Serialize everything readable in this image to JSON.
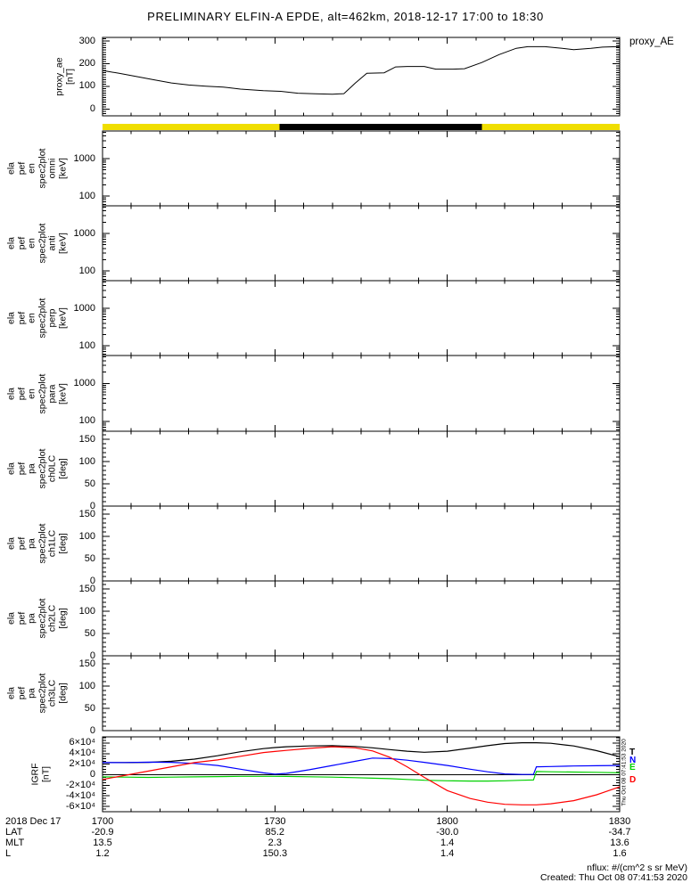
{
  "title": "PRELIMINARY ELFIN-A EPDE, alt=462km, 2018-12-17 17:00 to 18:30",
  "colors": {
    "background": "#FFFFFF",
    "axis": "#000000",
    "day_yellow": "#F0DE00",
    "night_black": "#000000",
    "line_black": "#000000",
    "line_blue": "#0000FF",
    "line_green": "#00D000",
    "line_red": "#FF0000"
  },
  "panels": [
    {
      "key": "proxy_ae",
      "ylabel": "proxy_ae\n[nT]",
      "right_label": "proxy_AE",
      "scale": "linear",
      "yrange": [
        -30,
        316
      ],
      "yticks": [
        {
          "value": 0,
          "label": "0"
        },
        {
          "value": 100,
          "label": "100"
        },
        {
          "value": 200,
          "label": "200"
        },
        {
          "value": 300,
          "label": "300"
        }
      ]
    },
    {
      "key": "omni",
      "ylabel": "ela\npef\nen\nspec2plot\nomni\n[keV]",
      "scale": "log",
      "yrange": [
        55,
        5470
      ],
      "yticks": [
        {
          "value": 100,
          "label": "100"
        },
        {
          "value": 1000,
          "label": "1000"
        }
      ]
    },
    {
      "key": "anti",
      "ylabel": "ela\npef\nen\nspec2plot\nanti\n[keV]",
      "scale": "log",
      "yrange": [
        55,
        5470
      ],
      "yticks": [
        {
          "value": 100,
          "label": "100"
        },
        {
          "value": 1000,
          "label": "1000"
        }
      ]
    },
    {
      "key": "perp",
      "ylabel": "ela\npef\nen\nspec2plot\nperp\n[keV]",
      "scale": "log",
      "yrange": [
        55,
        5470
      ],
      "yticks": [
        {
          "value": 100,
          "label": "100"
        },
        {
          "value": 1000,
          "label": "1000"
        }
      ]
    },
    {
      "key": "para",
      "ylabel": "ela\npef\nen\nspec2plot\npara\n[keV]",
      "scale": "log",
      "yrange": [
        55,
        5470
      ],
      "yticks": [
        {
          "value": 100,
          "label": "100"
        },
        {
          "value": 1000,
          "label": "1000"
        }
      ]
    },
    {
      "key": "ch0lc",
      "ylabel": "ela\npef\npa\nspec2plot\nch0LC\n[deg]",
      "scale": "linear",
      "yrange": [
        0,
        168
      ],
      "yticks": [
        {
          "value": 0,
          "label": "0"
        },
        {
          "value": 50,
          "label": "50"
        },
        {
          "value": 100,
          "label": "100"
        },
        {
          "value": 150,
          "label": "150"
        }
      ]
    },
    {
      "key": "ch1lc",
      "ylabel": "ela\npef\npa\nspec2plot\nch1LC\n[deg]",
      "scale": "linear",
      "yrange": [
        0,
        168
      ],
      "yticks": [
        {
          "value": 0,
          "label": "0"
        },
        {
          "value": 50,
          "label": "50"
        },
        {
          "value": 100,
          "label": "100"
        },
        {
          "value": 150,
          "label": "150"
        }
      ]
    },
    {
      "key": "ch2lc",
      "ylabel": "ela\npef\npa\nspec2plot\nch2LC\n[deg]",
      "scale": "linear",
      "yrange": [
        0,
        168
      ],
      "yticks": [
        {
          "value": 0,
          "label": "0"
        },
        {
          "value": 50,
          "label": "50"
        },
        {
          "value": 100,
          "label": "100"
        },
        {
          "value": 150,
          "label": "150"
        }
      ]
    },
    {
      "key": "ch3lc",
      "ylabel": "ela\npef\npa\nspec2plot\nch3LC\n[deg]",
      "scale": "linear",
      "yrange": [
        0,
        168
      ],
      "yticks": [
        {
          "value": 0,
          "label": "0"
        },
        {
          "value": 50,
          "label": "50"
        },
        {
          "value": 100,
          "label": "100"
        },
        {
          "value": 150,
          "label": "150"
        }
      ]
    },
    {
      "key": "igrf",
      "ylabel": "IGRF\n[nT]",
      "scale": "linear",
      "yrange": [
        -70000,
        71700
      ],
      "yticks": [
        {
          "value": -60000,
          "label": "-6×10⁴"
        },
        {
          "value": -40000,
          "label": "-4×10⁴"
        },
        {
          "value": -20000,
          "label": "-2×10⁴"
        },
        {
          "value": 0,
          "label": "0"
        },
        {
          "value": 20000,
          "label": "2×10⁴"
        },
        {
          "value": 40000,
          "label": "4×10⁴"
        },
        {
          "value": 60000,
          "label": "6×10⁴"
        }
      ],
      "legend": [
        {
          "label": "T",
          "color": "#000000"
        },
        {
          "label": "N",
          "color": "#0000FF"
        },
        {
          "label": "E",
          "color": "#00D000"
        },
        {
          "label": "D",
          "color": "#FF0000"
        }
      ]
    }
  ],
  "daynight_bar": {
    "segments": [
      {
        "kind": "day",
        "color": "#F0DE00",
        "from": 0.0,
        "to": 0.342
      },
      {
        "kind": "night",
        "color": "#000000",
        "from": 0.342,
        "to": 0.734
      },
      {
        "kind": "day",
        "color": "#F0DE00",
        "from": 0.734,
        "to": 1.0
      }
    ]
  },
  "xaxis": {
    "date": "2018 Dec 17",
    "row_labels": [
      "LAT",
      "MLT",
      "L"
    ],
    "ticks": [
      {
        "minutes": 0,
        "time": "1700",
        "lat": "-20.9",
        "mlt": "13.5",
        "l": "1.2"
      },
      {
        "minutes": 30,
        "time": "1730",
        "lat": "85.2",
        "mlt": "2.3",
        "l": "150.3"
      },
      {
        "minutes": 60,
        "time": "1800",
        "lat": "-30.0",
        "mlt": "1.4",
        "l": "1.4"
      },
      {
        "minutes": 90,
        "time": "1830",
        "lat": "-34.7",
        "mlt": "13.6",
        "l": "1.6"
      }
    ]
  },
  "footer": {
    "nflux": "nflux: #/(cm^2 s sr MeV)",
    "created": "Created: Thu Oct 08 07:41:53 2020"
  },
  "side_timestamp": "Thu Oct 08 07:41:53 2020",
  "chart_data": [
    {
      "panel": "proxy_ae",
      "type": "line",
      "title": "proxy_AE",
      "ylabel": "proxy_ae [nT]",
      "ylim": [
        -30,
        316
      ],
      "yticks_values": [
        0,
        100,
        200,
        300
      ],
      "xticks": [
        "1700",
        "1730",
        "1800",
        "1830"
      ],
      "color": "#000000",
      "x_minutes_after_1700": [
        0,
        3,
        6,
        9,
        12,
        15,
        18,
        21,
        24,
        28,
        31,
        34,
        37,
        40,
        42,
        44,
        46,
        49,
        51,
        53,
        56,
        58,
        61,
        63,
        66,
        69,
        72,
        74,
        77,
        80,
        82,
        85,
        87,
        90
      ],
      "values": [
        170,
        157,
        143,
        129,
        115,
        106,
        101,
        97,
        88,
        81,
        78,
        70,
        67,
        65,
        68,
        115,
        158,
        160,
        186,
        188,
        188,
        176,
        176,
        178,
        205,
        240,
        268,
        275,
        275,
        268,
        262,
        268,
        273,
        276
      ]
    },
    {
      "panel": "omni",
      "type": "heatmap",
      "title": "ela pef en spec2plot omni [keV]",
      "ylog": true,
      "ylim": [
        55,
        5470
      ],
      "empty": true,
      "note": "no data plotted"
    },
    {
      "panel": "anti",
      "type": "heatmap",
      "title": "ela pef en spec2plot anti [keV]",
      "ylog": true,
      "ylim": [
        55,
        5470
      ],
      "empty": true,
      "note": "no data plotted"
    },
    {
      "panel": "perp",
      "type": "heatmap",
      "title": "ela pef en spec2plot perp [keV]",
      "ylog": true,
      "ylim": [
        55,
        5470
      ],
      "empty": true,
      "note": "no data plotted"
    },
    {
      "panel": "para",
      "type": "heatmap",
      "title": "ela pef en spec2plot para [keV]",
      "ylog": true,
      "ylim": [
        55,
        5470
      ],
      "empty": true,
      "note": "no data plotted"
    },
    {
      "panel": "ch0lc",
      "type": "heatmap",
      "title": "ela pef pa spec2plot ch0LC [deg]",
      "ylim": [
        0,
        168
      ],
      "empty": true,
      "note": "no data plotted"
    },
    {
      "panel": "ch1lc",
      "type": "heatmap",
      "title": "ela pef pa spec2plot ch1LC [deg]",
      "ylim": [
        0,
        168
      ],
      "empty": true,
      "note": "no data plotted"
    },
    {
      "panel": "ch2lc",
      "type": "heatmap",
      "title": "ela pef pa spec2plot ch2LC [deg]",
      "ylim": [
        0,
        168
      ],
      "empty": true,
      "note": "no data plotted"
    },
    {
      "panel": "ch3lc",
      "type": "heatmap",
      "title": "ela pef pa spec2plot ch3LC [deg]",
      "ylim": [
        0,
        168
      ],
      "empty": true,
      "note": "no data plotted"
    },
    {
      "panel": "igrf",
      "type": "line",
      "title": "IGRF [nT]",
      "ylim": [
        -70000,
        71700
      ],
      "yticks_values": [
        -60000,
        -40000,
        -20000,
        0,
        20000,
        40000,
        60000
      ],
      "x_minutes_after_1700": [
        0,
        4,
        8,
        12,
        16,
        20,
        24,
        28,
        30,
        32,
        36,
        40,
        44,
        47,
        50,
        53,
        56,
        60,
        64,
        67,
        70,
        73,
        75,
        75.5,
        78,
        82,
        86,
        90
      ],
      "series": [
        {
          "name": "T",
          "color": "#000000",
          "values": [
            23000,
            23000,
            23500,
            25500,
            29500,
            36000,
            43500,
            49500,
            51500,
            53000,
            54500,
            55000,
            53500,
            51000,
            47500,
            44500,
            42500,
            44500,
            50500,
            55000,
            59000,
            60500,
            60500,
            60500,
            59500,
            54500,
            45500,
            34000
          ]
        },
        {
          "name": "N",
          "color": "#0000FF",
          "values": [
            23000,
            23200,
            23800,
            23500,
            21500,
            17500,
            10500,
            3500,
            1000,
            2500,
            9500,
            17500,
            25500,
            31500,
            30500,
            27500,
            23500,
            17500,
            10500,
            5500,
            1500,
            500,
            500,
            15000,
            15500,
            16500,
            17000,
            17500
          ]
        },
        {
          "name": "E",
          "color": "#00D000",
          "values": [
            -4000,
            -4500,
            -5000,
            -4500,
            -4000,
            -3500,
            -3000,
            -3000,
            -3000,
            -3200,
            -3800,
            -4500,
            -5500,
            -6500,
            -7500,
            -9000,
            -10500,
            -11500,
            -12000,
            -12000,
            -11500,
            -10500,
            -10000,
            6000,
            5500,
            5000,
            4500,
            3500
          ]
        },
        {
          "name": "D",
          "color": "#FF0000",
          "values": [
            -9000,
            -1000,
            7000,
            15000,
            23000,
            28000,
            35000,
            42000,
            44000,
            46000,
            50000,
            53000,
            51000,
            45000,
            33000,
            15000,
            -5000,
            -30000,
            -45000,
            -52000,
            -56000,
            -57000,
            -57000,
            -57000,
            -55000,
            -49000,
            -38000,
            -23000
          ]
        }
      ]
    },
    {
      "panel": "daynight_bar",
      "type": "bar",
      "note": "orbit day/night indicator strip",
      "segments": [
        {
          "state": "day",
          "from_min": 0.0,
          "to_min": 30.8
        },
        {
          "state": "night",
          "from_min": 30.8,
          "to_min": 66.1
        },
        {
          "state": "day",
          "from_min": 66.1,
          "to_min": 90.0
        }
      ]
    }
  ]
}
